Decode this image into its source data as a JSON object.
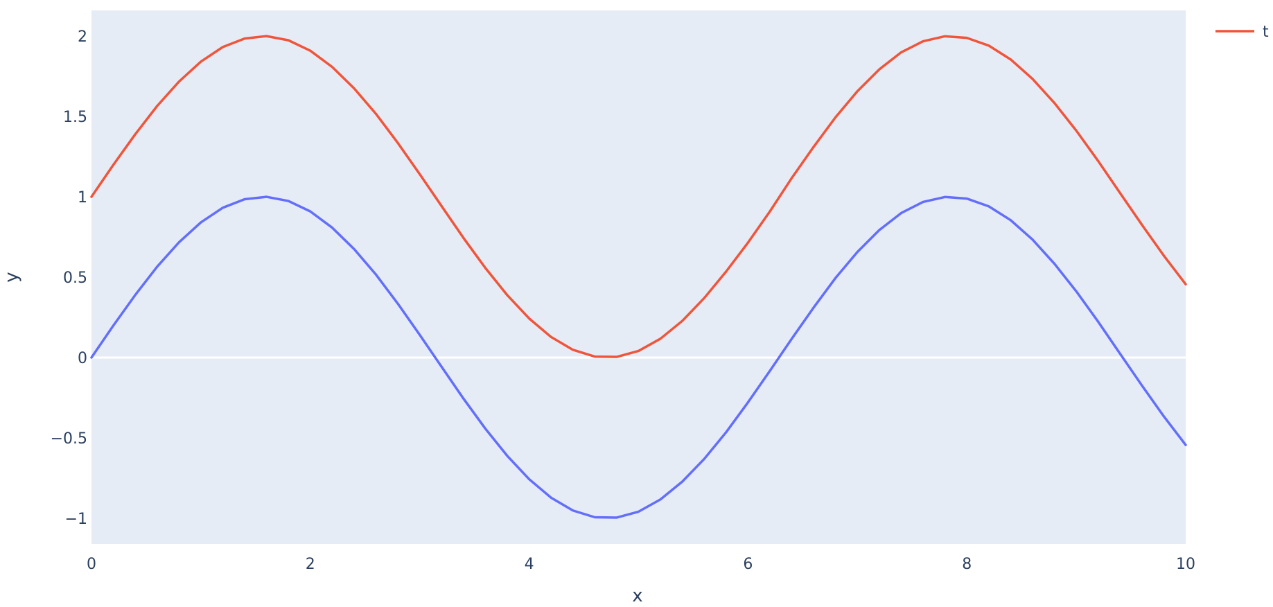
{
  "chart_data": {
    "type": "line",
    "xlabel": "x",
    "ylabel": "y",
    "xlim": [
      0,
      10
    ],
    "ylim": [
      -1.16,
      2.16
    ],
    "x_ticks": [
      0,
      2,
      4,
      6,
      8,
      10
    ],
    "x_tick_labels": [
      "0",
      "2",
      "4",
      "6",
      "8",
      "10"
    ],
    "y_ticks": [
      -1,
      -0.5,
      0,
      0.5,
      1,
      1.5,
      2
    ],
    "y_tick_labels": [
      "−1",
      "−0.5",
      "0",
      "0.5",
      "1",
      "1.5",
      "2"
    ],
    "grid": false,
    "zero_line": true,
    "legend_position": "top-right",
    "plot_background": "#e5ecf6",
    "series": [
      {
        "name": "t",
        "color": "#ef553b",
        "x": [
          0,
          0.2,
          0.4,
          0.6,
          0.8,
          1.0,
          1.2,
          1.4,
          1.6,
          1.8,
          2.0,
          2.2,
          2.4,
          2.6,
          2.8,
          3.0,
          3.2,
          3.4,
          3.6,
          3.8,
          4.0,
          4.2,
          4.4,
          4.6,
          4.8,
          5.0,
          5.2,
          5.4,
          5.6,
          5.8,
          6.0,
          6.2,
          6.4,
          6.6,
          6.8,
          7.0,
          7.2,
          7.4,
          7.6,
          7.8,
          8.0,
          8.2,
          8.4,
          8.6,
          8.8,
          9.0,
          9.2,
          9.4,
          9.6,
          9.8,
          10.0
        ],
        "values": [
          1.0,
          1.199,
          1.389,
          1.565,
          1.717,
          1.841,
          1.932,
          1.985,
          2.0,
          1.974,
          1.909,
          1.808,
          1.675,
          1.516,
          1.335,
          1.141,
          0.942,
          0.744,
          0.557,
          0.388,
          0.243,
          0.128,
          0.048,
          0.006,
          0.004,
          0.041,
          0.117,
          0.228,
          0.37,
          0.535,
          0.715,
          0.909,
          1.117,
          1.311,
          1.495,
          1.657,
          1.793,
          1.899,
          1.968,
          1.999,
          1.989,
          1.941,
          1.855,
          1.734,
          1.584,
          1.412,
          1.223,
          1.024,
          0.826,
          0.634,
          0.456
        ]
      },
      {
        "name": "",
        "color": "#636efa",
        "x": [
          0,
          0.2,
          0.4,
          0.6,
          0.8,
          1.0,
          1.2,
          1.4,
          1.6,
          1.8,
          2.0,
          2.2,
          2.4,
          2.6,
          2.8,
          3.0,
          3.2,
          3.4,
          3.6,
          3.8,
          4.0,
          4.2,
          4.4,
          4.6,
          4.8,
          5.0,
          5.2,
          5.4,
          5.6,
          5.8,
          6.0,
          6.2,
          6.4,
          6.6,
          6.8,
          7.0,
          7.2,
          7.4,
          7.6,
          7.8,
          8.0,
          8.2,
          8.4,
          8.6,
          8.8,
          9.0,
          9.2,
          9.4,
          9.6,
          9.8,
          10.0
        ],
        "values": [
          0.0,
          0.199,
          0.389,
          0.565,
          0.717,
          0.841,
          0.932,
          0.985,
          1.0,
          0.974,
          0.909,
          0.808,
          0.675,
          0.516,
          0.335,
          0.141,
          -0.058,
          -0.256,
          -0.443,
          -0.612,
          -0.757,
          -0.872,
          -0.952,
          -0.994,
          -0.996,
          -0.959,
          -0.883,
          -0.772,
          -0.631,
          -0.465,
          -0.279,
          -0.083,
          0.117,
          0.311,
          0.495,
          0.657,
          0.793,
          0.899,
          0.968,
          0.999,
          0.989,
          0.941,
          0.855,
          0.734,
          0.584,
          0.412,
          0.223,
          0.024,
          -0.174,
          -0.366,
          -0.544
        ]
      }
    ]
  }
}
